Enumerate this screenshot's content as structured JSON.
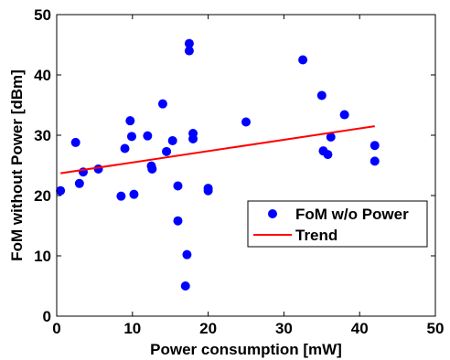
{
  "chart_data": {
    "type": "scatter",
    "xlabel": "Power consumption [mW]",
    "ylabel": "FoM without Power [dBm]",
    "xlim": [
      0,
      50
    ],
    "ylim": [
      0,
      50
    ],
    "xticks": [
      "0",
      "10",
      "20",
      "30",
      "40",
      "50"
    ],
    "yticks": [
      "0",
      "10",
      "20",
      "30",
      "40",
      "50"
    ],
    "grid": false,
    "legend_position": "lower-right",
    "series": [
      {
        "name": "FoM w/o Power",
        "type": "scatter",
        "color": "#0000ff",
        "points": [
          [
            0.5,
            20.8
          ],
          [
            2.5,
            28.8
          ],
          [
            3.0,
            22.0
          ],
          [
            3.5,
            23.9
          ],
          [
            5.5,
            24.4
          ],
          [
            8.5,
            19.9
          ],
          [
            9.0,
            27.8
          ],
          [
            9.7,
            32.4
          ],
          [
            9.9,
            29.8
          ],
          [
            10.2,
            20.2
          ],
          [
            12.0,
            29.9
          ],
          [
            12.5,
            24.9
          ],
          [
            12.6,
            24.4
          ],
          [
            14.0,
            35.2
          ],
          [
            14.5,
            27.3
          ],
          [
            15.3,
            29.1
          ],
          [
            16.0,
            21.6
          ],
          [
            16.0,
            15.8
          ],
          [
            17.0,
            5.0
          ],
          [
            17.2,
            10.2
          ],
          [
            17.5,
            45.2
          ],
          [
            17.5,
            44.0
          ],
          [
            18.0,
            30.3
          ],
          [
            18.0,
            29.4
          ],
          [
            20.0,
            21.2
          ],
          [
            20.0,
            20.8
          ],
          [
            25.0,
            32.2
          ],
          [
            32.5,
            42.5
          ],
          [
            35.0,
            36.6
          ],
          [
            35.2,
            27.4
          ],
          [
            35.8,
            26.8
          ],
          [
            36.2,
            29.7
          ],
          [
            38.0,
            33.4
          ],
          [
            42.0,
            28.3
          ],
          [
            42.0,
            25.7
          ]
        ]
      },
      {
        "name": "Trend",
        "type": "line",
        "color": "#ff0000",
        "points": [
          [
            0.5,
            23.7
          ],
          [
            42.0,
            31.5
          ]
        ]
      }
    ]
  }
}
